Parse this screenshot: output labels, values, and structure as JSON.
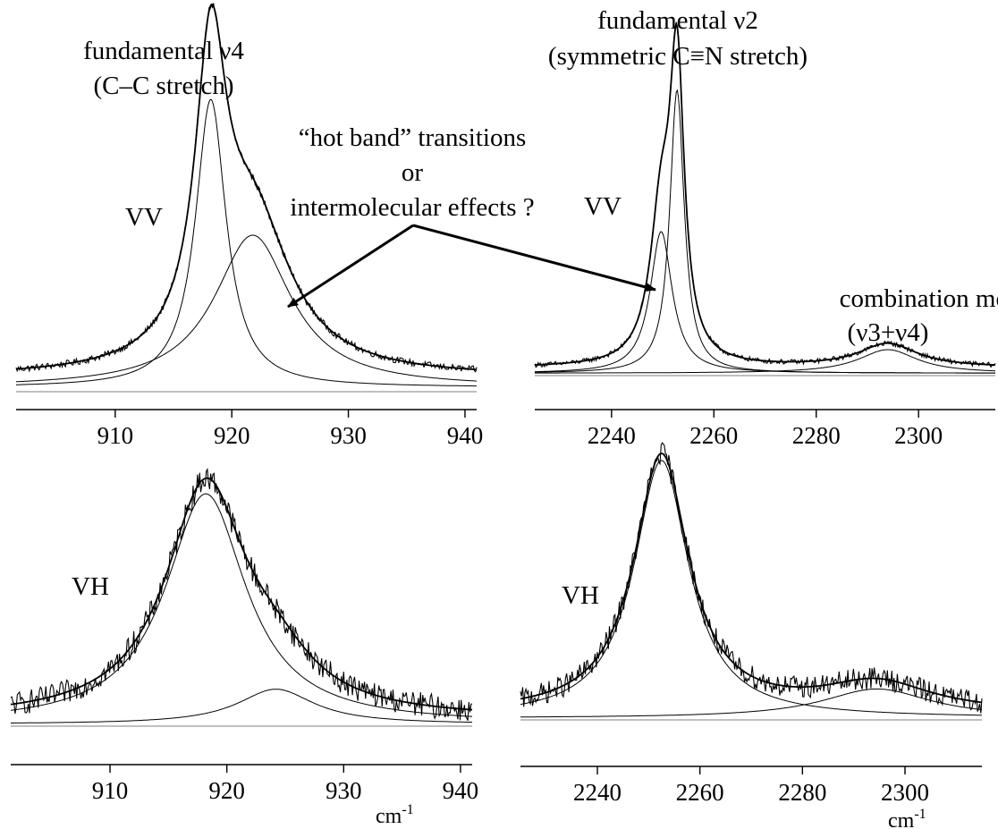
{
  "annotations": {
    "nu4_title_line1": "fundamental ν4",
    "nu4_title_line2": "(C–C stretch)",
    "nu2_title_line1": "fundamental ν2",
    "nu2_title_line2": "(symmetric C≡N stretch)",
    "hot_band_line1": "“hot band” transitions",
    "hot_band_line2": "or",
    "hot_band_line3": "intermolecular effects ?",
    "combination_line1": "combination mode",
    "combination_line2": "(ν3+ν4)"
  },
  "chart_data": [
    {
      "id": "vv-nu4",
      "type": "line",
      "panel_label": "VV",
      "xlabel": "",
      "xlim": [
        901.5,
        941
      ],
      "xticks": [
        910,
        920,
        930,
        940
      ],
      "baseline": 0.035,
      "components": [
        {
          "shape": "lorentzian",
          "center": 918.2,
          "hwhm": 1.6,
          "amplitude": 0.7
        },
        {
          "shape": "lorentzian",
          "center": 921.8,
          "hwhm": 4.0,
          "amplitude": 0.37
        }
      ],
      "noise": 0.008,
      "fits": [
        "total",
        "component-1",
        "component-2"
      ]
    },
    {
      "id": "vv-nu2",
      "type": "line",
      "panel_label": "VV",
      "xlabel": "",
      "xlim": [
        2225,
        2315
      ],
      "xticks": [
        2240,
        2260,
        2280,
        2300
      ],
      "baseline": 0.02,
      "components": [
        {
          "shape": "lorentzian",
          "center": 2252.8,
          "hwhm": 1.7,
          "amplitude": 0.72
        },
        {
          "shape": "lorentzian",
          "center": 2249.7,
          "hwhm": 2.6,
          "amplitude": 0.36
        },
        {
          "shape": "lorentzian",
          "center": 2294,
          "hwhm": 7.0,
          "amplitude": 0.06
        }
      ],
      "noise": 0.006,
      "fits": [
        "total",
        "component-1",
        "component-2"
      ]
    },
    {
      "id": "vh-nu4",
      "type": "line",
      "panel_label": "VH",
      "xlabel": "cm-1",
      "xlim": [
        901.5,
        941
      ],
      "xticks": [
        910,
        920,
        930,
        940
      ],
      "baseline": 0.02,
      "components": [
        {
          "shape": "lorentzian",
          "center": 918.2,
          "hwhm": 4.2,
          "amplitude": 0.66
        },
        {
          "shape": "lorentzian",
          "center": 924.2,
          "hwhm": 4.0,
          "amplitude": 0.1
        }
      ],
      "noise": 0.035,
      "fits": [
        "total",
        "component-1",
        "component-2"
      ]
    },
    {
      "id": "vh-nu2",
      "type": "line",
      "panel_label": "VH",
      "xlabel": "cm-1",
      "xlim": [
        2225,
        2315
      ],
      "xticks": [
        2240,
        2260,
        2280,
        2300
      ],
      "baseline": 0.02,
      "components": [
        {
          "shape": "lorentzian",
          "center": 2252.5,
          "hwhm": 6.5,
          "amplitude": 0.8
        },
        {
          "shape": "lorentzian",
          "center": 2294.5,
          "hwhm": 13.0,
          "amplitude": 0.09
        }
      ],
      "noise": 0.035,
      "fits": [
        "total",
        "component-1",
        "component-2"
      ]
    }
  ]
}
